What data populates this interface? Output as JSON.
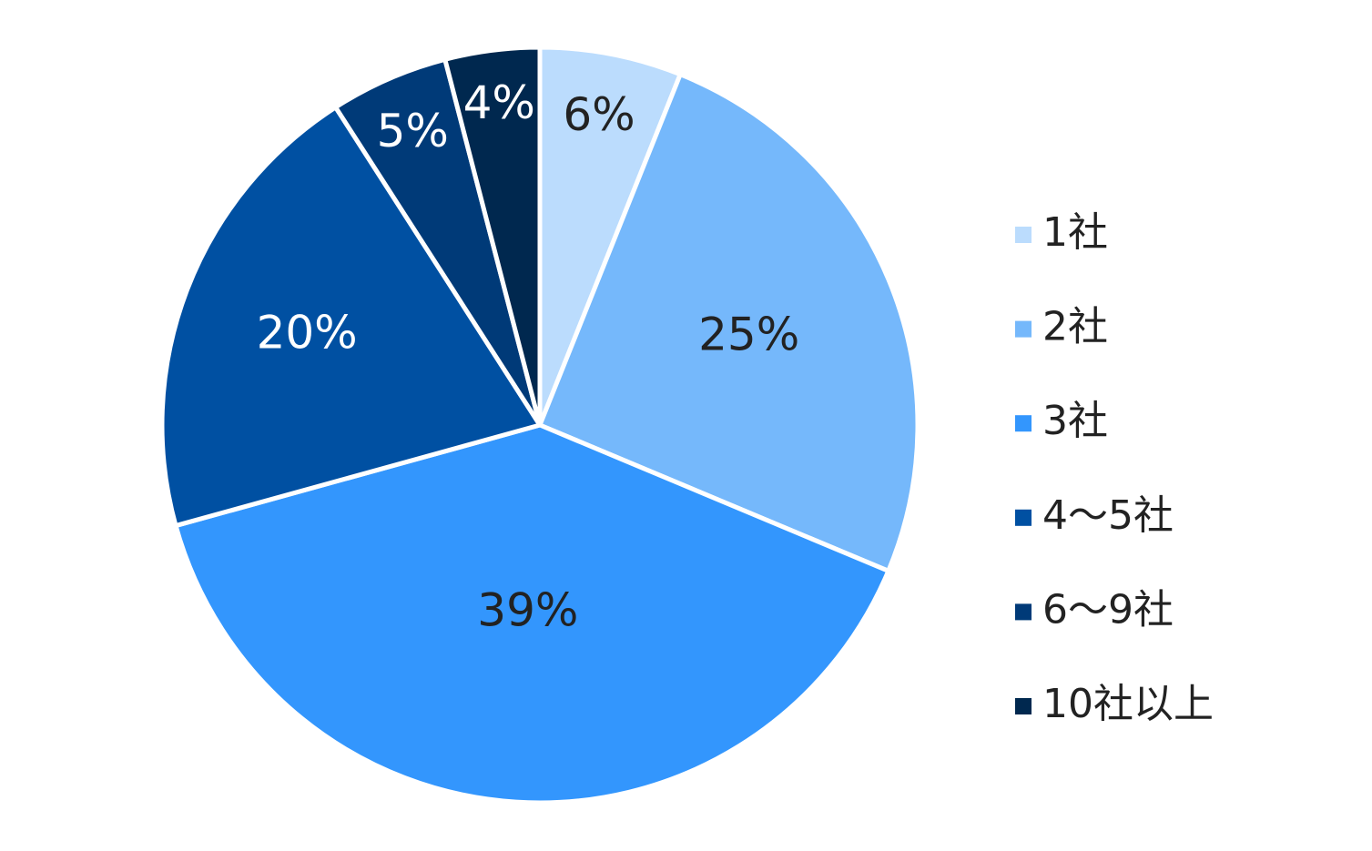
{
  "chart_data": {
    "type": "pie",
    "categories": [
      "1社",
      "2社",
      "3社",
      "4～5社",
      "6～9社",
      "10社以上"
    ],
    "values": [
      6,
      25,
      39,
      20,
      5,
      4
    ],
    "value_labels": [
      "6%",
      "25%",
      "39%",
      "20%",
      "5%",
      "4%"
    ],
    "colors": [
      "#bbdcfd",
      "#75b8fb",
      "#3396fd",
      "#0050a2",
      "#003a78",
      "#00284f"
    ],
    "legend": "right"
  }
}
